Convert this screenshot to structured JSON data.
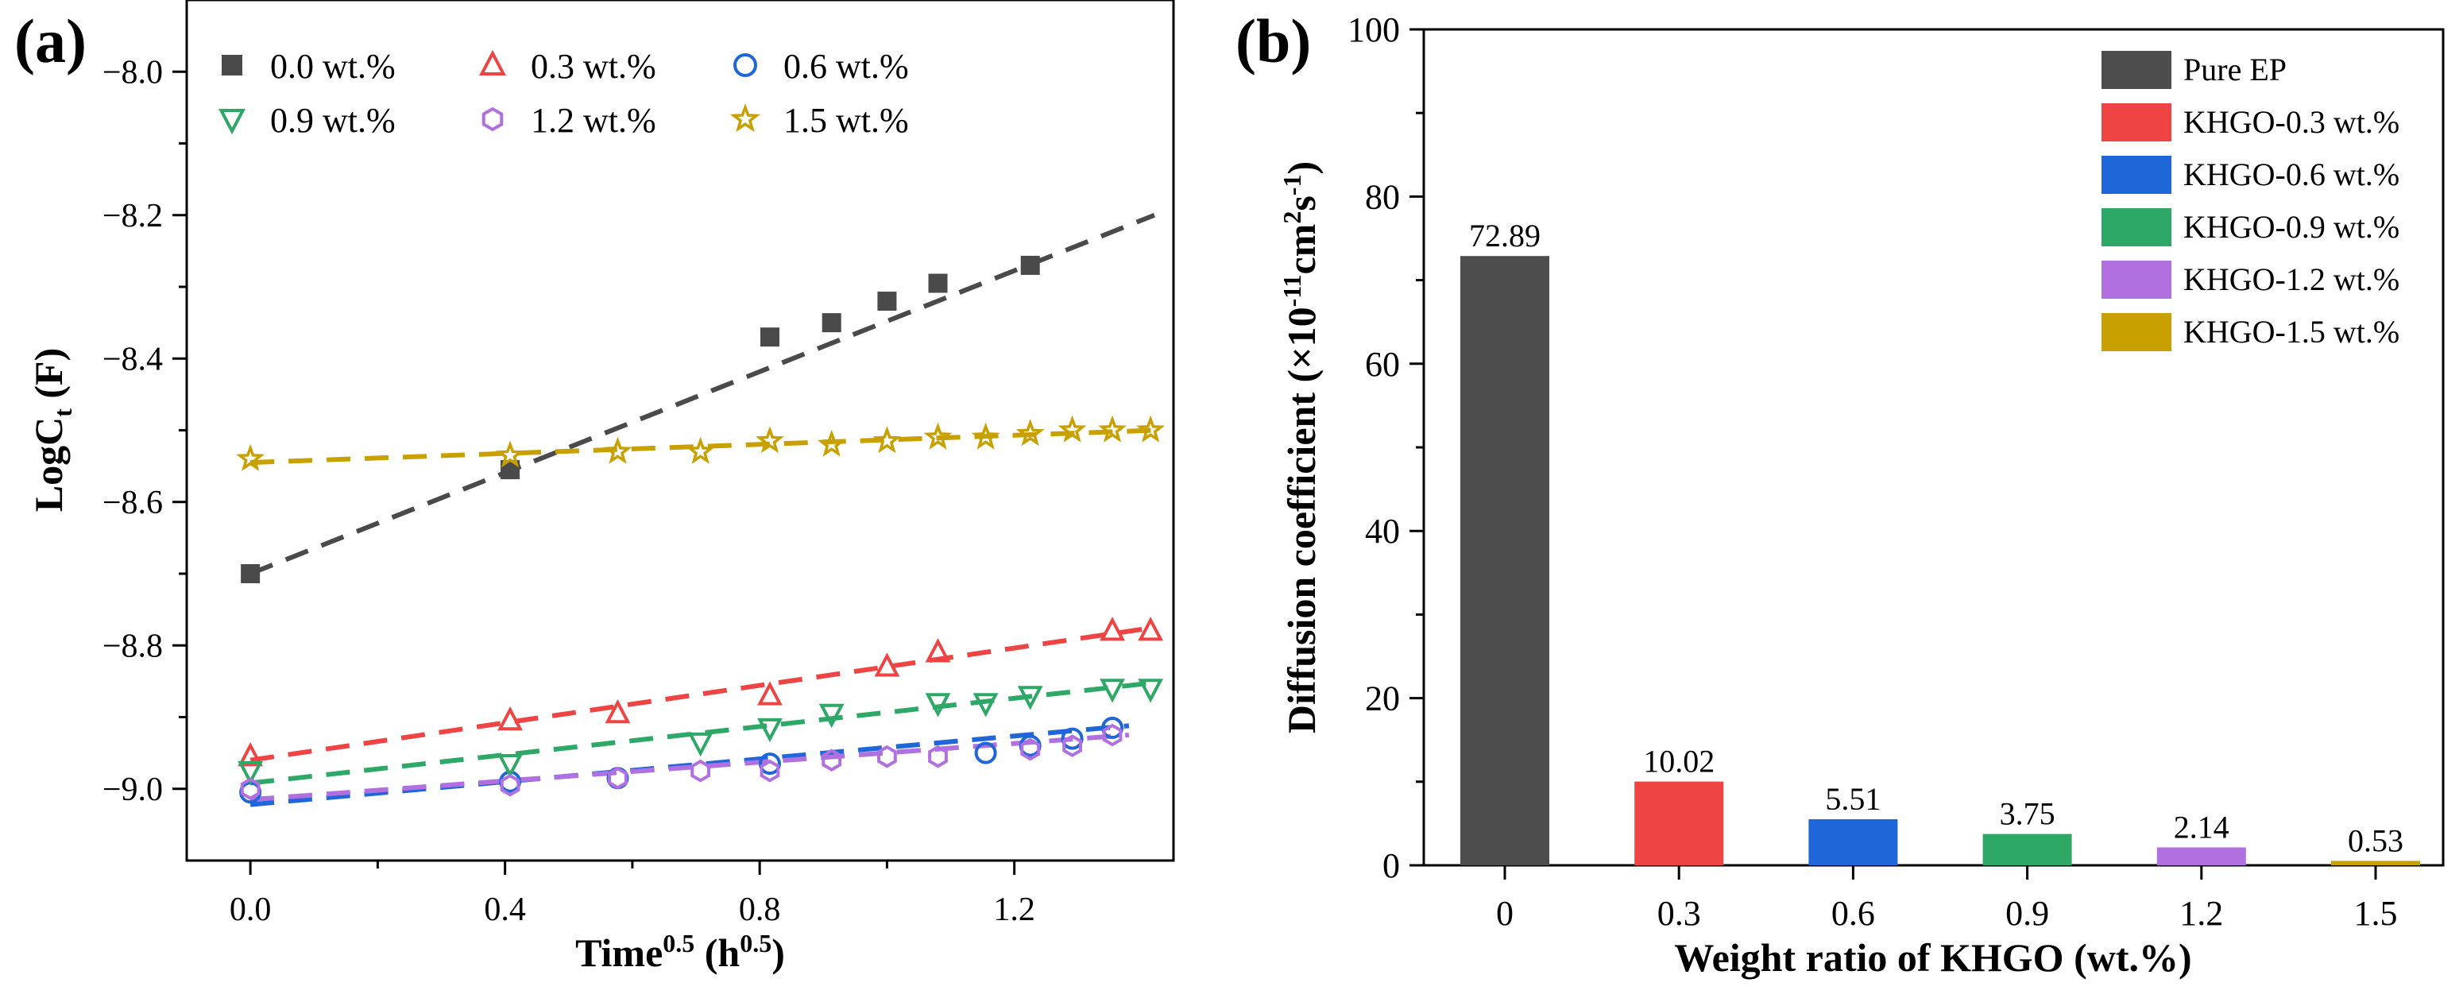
{
  "chart_data": [
    {
      "type": "scatter",
      "panel_label": "(a)",
      "xlabel": "Time",
      "xlabel_sup": "0.5",
      "xlabel_unit": "(h",
      "xlabel_unit_sup": "0.5",
      "xlabel_close": ")",
      "ylabel": "LogC",
      "ylabel_sub": "t",
      "ylabel_unit": "(F)",
      "xlim": [
        -0.1,
        1.45
      ],
      "ylim": [
        -9.1,
        -7.9
      ],
      "xticks": [
        0.0,
        0.4,
        0.8,
        1.2
      ],
      "xtick_labels": [
        "0.0",
        "0.4",
        "0.8",
        "1.2"
      ],
      "yticks": [
        -9.0,
        -8.8,
        -8.6,
        -8.4,
        -8.2,
        -8.0
      ],
      "ytick_labels": [
        "-9.0",
        "-8.8",
        "-8.6",
        "-8.4",
        "-8.2",
        "-8.0"
      ],
      "legend_position": "top",
      "series": [
        {
          "name": "0.0 wt.%",
          "marker": "square",
          "color": "#4a4a4a",
          "x": [
            0.0,
            0.408,
            0.816,
            0.913,
            1.0,
            1.08,
            1.225
          ],
          "y": [
            -8.7,
            -8.555,
            -8.37,
            -8.35,
            -8.32,
            -8.295,
            -8.27
          ],
          "fit_x": [
            0.0,
            1.42
          ],
          "fit_y": [
            -8.7,
            -8.2
          ]
        },
        {
          "name": "0.3 wt.%",
          "marker": "triangle-up",
          "color": "#ee4444",
          "x": [
            0.0,
            0.408,
            0.577,
            0.816,
            1.0,
            1.08,
            1.354,
            1.414
          ],
          "y": [
            -8.955,
            -8.905,
            -8.895,
            -8.87,
            -8.83,
            -8.81,
            -8.78,
            -8.78
          ],
          "fit_x": [
            0.0,
            1.42
          ],
          "fit_y": [
            -8.96,
            -8.775
          ]
        },
        {
          "name": "0.6 wt.%",
          "marker": "circle",
          "color": "#1f66d9",
          "x": [
            0.0,
            0.408,
            0.577,
            0.816,
            1.155,
            1.225,
            1.291,
            1.354
          ],
          "y": [
            -9.005,
            -8.99,
            -8.985,
            -8.965,
            -8.95,
            -8.94,
            -8.93,
            -8.915
          ],
          "fit_x": [
            0.0,
            1.38
          ],
          "fit_y": [
            -9.022,
            -8.912
          ]
        },
        {
          "name": "0.9 wt.%",
          "marker": "triangle-down",
          "color": "#2ea866",
          "x": [
            0.0,
            0.408,
            0.707,
            0.816,
            0.913,
            1.08,
            1.155,
            1.225,
            1.354,
            1.414
          ],
          "y": [
            -8.975,
            -8.965,
            -8.935,
            -8.915,
            -8.895,
            -8.88,
            -8.88,
            -8.87,
            -8.86,
            -8.86
          ],
          "fit_x": [
            0.0,
            1.42
          ],
          "fit_y": [
            -8.992,
            -8.852
          ]
        },
        {
          "name": "1.2 wt.%",
          "marker": "hexagon",
          "color": "#b070e0",
          "x": [
            0.0,
            0.408,
            0.577,
            0.707,
            0.816,
            0.913,
            1.0,
            1.08,
            1.225,
            1.291,
            1.354
          ],
          "y": [
            -9.0,
            -8.995,
            -8.985,
            -8.975,
            -8.975,
            -8.96,
            -8.955,
            -8.955,
            -8.945,
            -8.94,
            -8.925
          ],
          "fit_x": [
            0.0,
            1.38
          ],
          "fit_y": [
            -9.015,
            -8.925
          ]
        },
        {
          "name": "1.5 wt.%",
          "marker": "star",
          "color": "#c8a000",
          "x": [
            0.0,
            0.408,
            0.577,
            0.707,
            0.816,
            0.913,
            1.0,
            1.08,
            1.155,
            1.225,
            1.291,
            1.354,
            1.414
          ],
          "y": [
            -8.54,
            -8.535,
            -8.53,
            -8.53,
            -8.515,
            -8.52,
            -8.515,
            -8.51,
            -8.51,
            -8.505,
            -8.5,
            -8.5,
            -8.5
          ],
          "fit_x": [
            0.0,
            1.42
          ],
          "fit_y": [
            -8.545,
            -8.5
          ]
        }
      ]
    },
    {
      "type": "bar",
      "panel_label": "(b)",
      "xlabel": "Weight ratio of KHGO (wt.%)",
      "ylabel": "Diffusion coefficient (×10",
      "ylabel_exp": "-11",
      "ylabel_unit": "cm",
      "ylabel_unit_sup": "2",
      "ylabel_s": "s",
      "ylabel_s_sup": "-1",
      "ylabel_close": ")",
      "ylim": [
        0,
        100
      ],
      "yticks": [
        0,
        20,
        40,
        60,
        80,
        100
      ],
      "ytick_labels": [
        "0",
        "20",
        "40",
        "60",
        "80",
        "100"
      ],
      "categories": [
        "0",
        "0.3",
        "0.6",
        "0.9",
        "1.2",
        "1.5"
      ],
      "values": [
        72.89,
        10.02,
        5.51,
        3.75,
        2.14,
        0.53
      ],
      "value_labels": [
        "72.89",
        "10.02",
        "5.51",
        "3.75",
        "2.14",
        "0.53"
      ],
      "colors": [
        "#4d4d4d",
        "#ee4444",
        "#1f66d9",
        "#2ea866",
        "#b070e0",
        "#c8a000"
      ],
      "legend": [
        "Pure EP",
        "KHGO-0.3 wt.%",
        "KHGO-0.6 wt.%",
        "KHGO-0.9 wt.%",
        "KHGO-1.2 wt.%",
        "KHGO-1.5 wt.%"
      ],
      "legend_position": "top-right"
    }
  ]
}
